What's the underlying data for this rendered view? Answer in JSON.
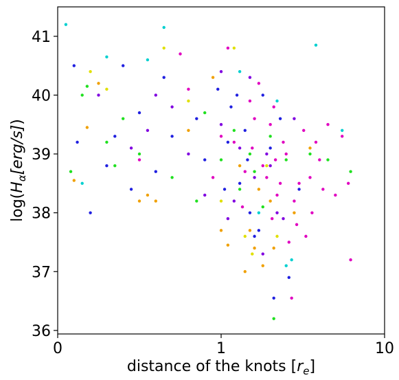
{
  "chart_data": {
    "type": "scatter",
    "xlabel": "distance of the knots [",
    "xlabel_var": "r",
    "xlabel_sub": "e",
    "xlabel_end": "]",
    "ylabel": "log(",
    "ylabel_var": "H",
    "ylabel_sub": "α",
    "ylabel_unit": "[erg/s]",
    "ylabel_end": ")",
    "xscale": "symlog",
    "linthresh": 1,
    "xlim": [
      0,
      10
    ],
    "xticks": [
      0,
      1,
      10
    ],
    "ylim": [
      35.94,
      41.5
    ],
    "yticks": [
      36,
      37,
      38,
      39,
      40,
      41
    ],
    "series": [
      {
        "color": "#e000c0",
        "x": [
          1.5,
          2.0,
          2.5,
          3.0,
          1.8,
          2.2,
          2.8,
          3.5,
          4.0,
          1.2,
          1.6,
          2.4,
          3.2,
          4.5,
          5.0,
          2.6,
          2.9,
          6.2,
          0.5,
          0.8,
          1.0,
          1.4,
          1.9,
          2.1,
          3.6,
          2.7,
          1.7,
          1.1,
          0.75,
          2.3,
          5.5,
          4.2,
          3.3,
          1.35,
          2.05,
          0.95,
          1.55,
          2.15,
          3.8,
          6.0
        ],
        "values": [
          39.9,
          39.5,
          39.0,
          38.5,
          38.8,
          38.3,
          38.2,
          38.6,
          38.9,
          39.2,
          39.6,
          39.2,
          39.4,
          39.5,
          38.3,
          37.5,
          37.8,
          37.2,
          38.9,
          40.1,
          39.3,
          38.7,
          38.6,
          39.8,
          38.0,
          36.55,
          40.2,
          40.8,
          40.7,
          38.5,
          39.3,
          38.4,
          37.6,
          38.1,
          37.9,
          38.6,
          39.1,
          38.9,
          39.2,
          38.5
        ]
      },
      {
        "color": "#2020e0",
        "x": [
          0.1,
          0.12,
          0.2,
          0.45,
          0.5,
          0.6,
          0.7,
          0.9,
          1.1,
          1.3,
          1.5,
          1.7,
          1.8,
          2.0,
          2.1,
          2.6,
          1.25,
          0.85,
          1.05,
          1.4,
          0.4,
          1.6,
          0.65,
          0.98,
          1.15,
          1.45,
          3.0,
          2.3,
          0.35,
          0.3
        ],
        "values": [
          40.5,
          39.2,
          38.0,
          38.4,
          39.7,
          38.7,
          39.3,
          38.9,
          39.2,
          38.5,
          38.0,
          37.7,
          40.0,
          39.1,
          36.55,
          36.9,
          40.0,
          39.6,
          38.4,
          39.4,
          40.5,
          37.6,
          40.3,
          40.1,
          39.8,
          38.9,
          38.4,
          39.6,
          39.3,
          38.8
        ]
      },
      {
        "color": "#8000e0",
        "x": [
          0.25,
          0.8,
          1.0,
          1.3,
          1.6,
          2.0,
          1.2,
          0.7,
          0.55,
          1.8,
          2.4,
          1.0,
          1.5,
          0.9,
          2.8,
          1.1,
          0.6,
          1.9,
          2.2,
          0.45
        ],
        "values": [
          40.0,
          39.0,
          39.5,
          39.1,
          38.6,
          38.8,
          38.2,
          39.8,
          39.4,
          37.3,
          37.9,
          40.4,
          40.3,
          38.3,
          39.6,
          37.9,
          40.0,
          39.0,
          38.0,
          39.1
        ]
      },
      {
        "color": "#20e020",
        "x": [
          0.08,
          0.15,
          0.18,
          0.3,
          0.35,
          0.4,
          0.5,
          0.7,
          1.0,
          1.3,
          1.5,
          1.8,
          2.1,
          1.2,
          0.9,
          2.5,
          3.5,
          4.5,
          6.2,
          1.6,
          0.85,
          2.0
        ],
        "values": [
          38.7,
          40.0,
          40.15,
          39.2,
          38.8,
          39.6,
          39.0,
          38.6,
          38.9,
          38.4,
          39.0,
          38.1,
          36.2,
          39.4,
          39.7,
          38.9,
          39.0,
          38.9,
          38.7,
          38.7,
          38.2,
          39.3
        ]
      },
      {
        "color": "#f0a000",
        "x": [
          0.1,
          0.18,
          0.25,
          0.5,
          0.55,
          0.6,
          1.0,
          1.1,
          1.4,
          1.5,
          1.8,
          2.1,
          2.0,
          1.3,
          0.8,
          2.8,
          3.5,
          1.6,
          1.7,
          0.95
        ],
        "values": [
          38.55,
          39.45,
          40.2,
          38.2,
          38.3,
          38.2,
          37.7,
          37.45,
          37.0,
          37.7,
          37.1,
          37.4,
          38.2,
          38.8,
          39.4,
          38.0,
          39.1,
          37.4,
          38.4,
          40.3
        ]
      },
      {
        "color": "#e0e000",
        "x": [
          0.2,
          0.3,
          0.65,
          1.2,
          1.0,
          1.55,
          1.4,
          1.9,
          0.8,
          2.2
        ],
        "values": [
          40.4,
          40.1,
          40.8,
          40.8,
          38.2,
          37.3,
          37.6,
          38.8,
          39.9,
          37.6
        ]
      },
      {
        "color": "#00d0d0",
        "x": [
          0.05,
          0.3,
          0.65,
          0.55,
          3.8,
          2.5,
          1.7,
          2.7,
          5.5,
          0.15,
          1.3,
          2.2
        ],
        "values": [
          41.2,
          40.65,
          41.15,
          40.6,
          40.85,
          37.1,
          38.0,
          37.2,
          39.4,
          38.5,
          40.4,
          39.9
        ]
      }
    ]
  }
}
